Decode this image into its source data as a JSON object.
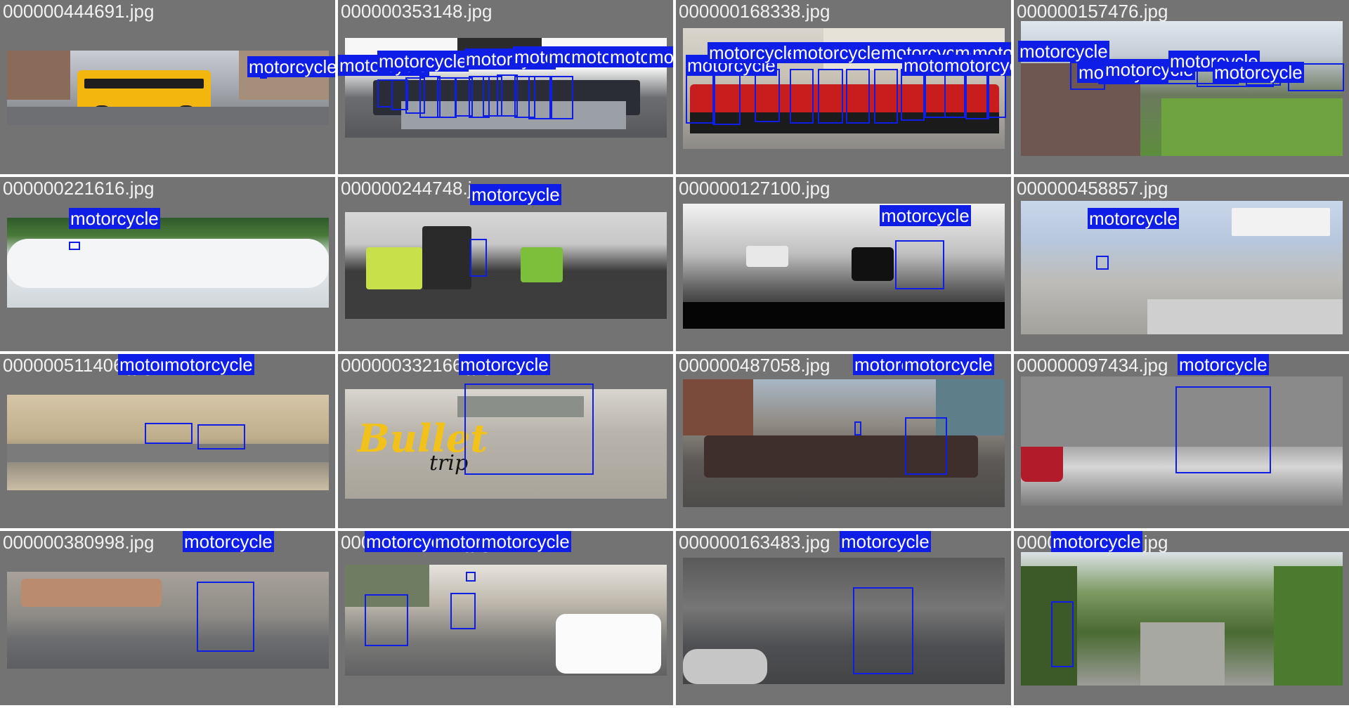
{
  "label_text": "motorcycle",
  "colors": {
    "tile_bg": "#737373",
    "box": "#0f1ee6",
    "filename_text": "#f2f2f2"
  },
  "tiles": [
    {
      "filename": "000000444691.jpg",
      "scene": "yellow school bus on city street",
      "boxes": 1
    },
    {
      "filename": "000000353148.jpg",
      "scene": "row of parked motorcycles",
      "boxes": 12
    },
    {
      "filename": "000000168338.jpg",
      "scene": "row of red motorcycles",
      "boxes": 12
    },
    {
      "filename": "000000157476.jpg",
      "scene": "stadium crowd and grass",
      "boxes": 5
    },
    {
      "filename": "000000221616.jpg",
      "scene": "jet ski spray on water",
      "boxes": 1
    },
    {
      "filename": "000000244748.jpg",
      "scene": "people in vests near car",
      "boxes": 1
    },
    {
      "filename": "000000127100.jpg",
      "scene": "black and white street scene",
      "boxes": 1
    },
    {
      "filename": "000000458857.jpg",
      "scene": "people near stop sign",
      "boxes": 1
    },
    {
      "filename": "000000511406.jpg",
      "scene": "two motorcycles on sandy road",
      "boxes": 2
    },
    {
      "filename": "000000332166.jpg",
      "scene": "Bullet trip motorcycle",
      "boxes": 1,
      "overlay_text_1": "Bullet",
      "overlay_text_2": "trip"
    },
    {
      "filename": "000000487058.jpg",
      "scene": "street march with police motorcycle",
      "boxes": 2
    },
    {
      "filename": "000000097434.jpg",
      "scene": "police motorcycle by building",
      "boxes": 1
    },
    {
      "filename": "000000380998.jpg",
      "scene": "motorcycle on road with spectators",
      "boxes": 1
    },
    {
      "filename": "000000561186.jpg",
      "scene": "street with white van",
      "boxes": 3
    },
    {
      "filename": "000000163483.jpg",
      "scene": "police motorcycle on city street",
      "boxes": 1
    },
    {
      "filename": "000000255004.jpg",
      "scene": "sidecar motorcycle on road with trees",
      "boxes": 1
    }
  ]
}
